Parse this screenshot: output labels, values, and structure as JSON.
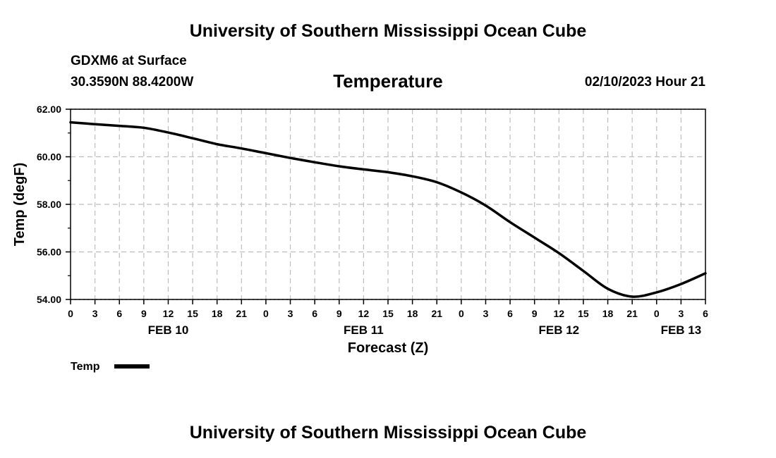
{
  "header": {
    "title": "University of Southern Mississippi Ocean Cube",
    "station": "GDXM6 at Surface",
    "location": "30.3590N  88.4200W",
    "datetime": "02/10/2023 Hour 21"
  },
  "footer": {
    "title": "University of Southern Mississippi Ocean Cube"
  },
  "chart_data": {
    "type": "line",
    "title": "Temperature",
    "xlabel": "Forecast (Z)",
    "ylabel": "Temp (degF)",
    "xlim": [
      0,
      78
    ],
    "ylim": [
      54,
      62
    ],
    "x_tick_labels": [
      "0",
      "3",
      "6",
      "9",
      "12",
      "15",
      "18",
      "21",
      "0",
      "3",
      "6",
      "9",
      "12",
      "15",
      "18",
      "21",
      "0",
      "3",
      "6",
      "9",
      "12",
      "15",
      "18",
      "21",
      "0",
      "3",
      "6"
    ],
    "y_tick_labels": [
      "54.00",
      "56.00",
      "58.00",
      "60.00",
      "62.00"
    ],
    "y_ticks": [
      54,
      56,
      58,
      60,
      62
    ],
    "day_labels": [
      {
        "label": "FEB 10",
        "hour": 12
      },
      {
        "label": "FEB 11",
        "hour": 36
      },
      {
        "label": "FEB 12",
        "hour": 60
      },
      {
        "label": "FEB 13",
        "hour": 75
      }
    ],
    "grid": true,
    "legend": {
      "placement": "bottom-left",
      "entries": [
        "Temp"
      ]
    },
    "series": [
      {
        "name": "Temp",
        "color": "#000000",
        "x": [
          0,
          3,
          6,
          9,
          12,
          15,
          18,
          21,
          24,
          27,
          30,
          33,
          36,
          39,
          42,
          45,
          48,
          51,
          54,
          57,
          60,
          63,
          66,
          69,
          72,
          75,
          78
        ],
        "y": [
          61.45,
          61.37,
          61.3,
          61.22,
          61.02,
          60.78,
          60.53,
          60.35,
          60.15,
          59.95,
          59.77,
          59.6,
          59.47,
          59.35,
          59.18,
          58.93,
          58.5,
          57.95,
          57.25,
          56.6,
          55.95,
          55.2,
          54.45,
          54.12,
          54.3,
          54.65,
          55.1
        ]
      }
    ]
  }
}
